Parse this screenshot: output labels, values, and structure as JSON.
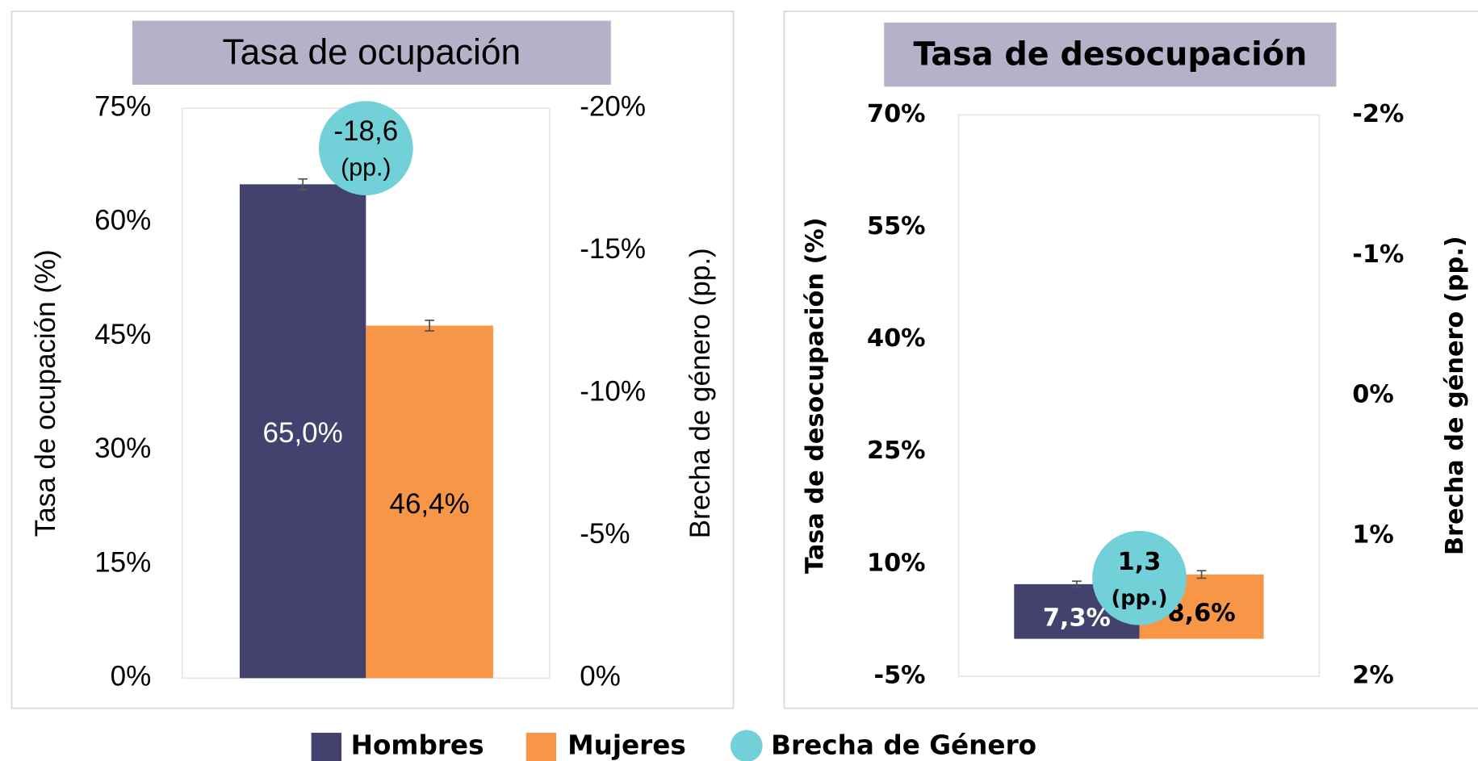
{
  "chart_data": [
    {
      "type": "bar",
      "title": "Tasa de ocupación",
      "y_label": "Tasa de ocupación (%)",
      "y2_label": "Brecha de género (pp.)",
      "categories": [
        null
      ],
      "series": [
        {
          "name": "Hombres",
          "color": "#43426e",
          "values": [
            65.0
          ],
          "value_labels": [
            "65,0%"
          ],
          "errors": [
            0.7
          ]
        },
        {
          "name": "Mujeres",
          "color": "#f79646",
          "values": [
            46.4
          ],
          "value_labels": [
            "46,4%"
          ],
          "errors": [
            0.7
          ]
        },
        {
          "name": "Brecha de Género",
          "color": "#72d0d8",
          "axis": "y2",
          "values": [
            -18.6
          ],
          "value_labels": [
            "-18,6"
          ],
          "unit_label": "(pp.)"
        }
      ],
      "ylim": [
        0,
        75
      ],
      "yticks": [
        {
          "value": 0,
          "label": "0%"
        },
        {
          "value": 15,
          "label": "15%"
        },
        {
          "value": 30,
          "label": "30%"
        },
        {
          "value": 45,
          "label": "45%"
        },
        {
          "value": 60,
          "label": "60%"
        },
        {
          "value": 75,
          "label": "75%"
        }
      ],
      "y2lim": [
        0,
        -20
      ],
      "y2ticks": [
        {
          "value": 0,
          "label": "0%"
        },
        {
          "value": -5,
          "label": "-5%"
        },
        {
          "value": -10,
          "label": "-10%"
        },
        {
          "value": -15,
          "label": "-15%"
        },
        {
          "value": -20,
          "label": "-20%"
        }
      ]
    },
    {
      "type": "bar",
      "title": "Tasa de desocupación",
      "y_label": "Tasa de desocupación (%)",
      "y2_label": "Brecha de género (pp.)",
      "categories": [
        null
      ],
      "series": [
        {
          "name": "Hombres",
          "color": "#43426e",
          "values": [
            7.3
          ],
          "value_labels": [
            "7,3%"
          ],
          "errors": [
            0.4
          ]
        },
        {
          "name": "Mujeres",
          "color": "#f79646",
          "values": [
            8.6
          ],
          "value_labels": [
            "8,6%"
          ],
          "errors": [
            0.5
          ]
        },
        {
          "name": "Brecha de Género",
          "color": "#72d0d8",
          "axis": "y2",
          "values": [
            1.3
          ],
          "value_labels": [
            "1,3"
          ],
          "unit_label": "(pp.)"
        }
      ],
      "ylim": [
        -5,
        70
      ],
      "yticks": [
        {
          "value": -5,
          "label": "-5%"
        },
        {
          "value": 10,
          "label": "10%"
        },
        {
          "value": 25,
          "label": "25%"
        },
        {
          "value": 40,
          "label": "40%"
        },
        {
          "value": 55,
          "label": "55%"
        },
        {
          "value": 70,
          "label": "70%"
        }
      ],
      "y2lim": [
        2,
        -2
      ],
      "y2ticks": [
        {
          "value": 2,
          "label": "2%"
        },
        {
          "value": 1,
          "label": "1%"
        },
        {
          "value": 0,
          "label": "0%"
        },
        {
          "value": -1,
          "label": "-1%"
        },
        {
          "value": -2,
          "label": "-2%"
        }
      ]
    }
  ]
}
